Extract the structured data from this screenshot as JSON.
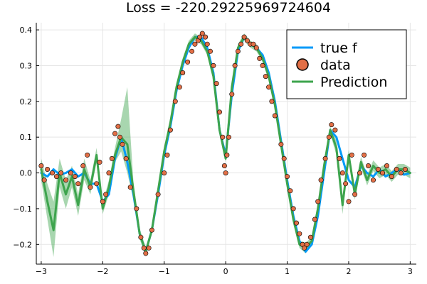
{
  "chart_data": {
    "type": "line",
    "title": "Loss = -220.29225969724604",
    "xlabel": "",
    "ylabel": "",
    "xlim": [
      -3.08,
      3.1
    ],
    "ylim": [
      -0.255,
      0.42
    ],
    "xticks": [
      -3,
      -2,
      -1,
      0,
      1,
      2,
      3
    ],
    "yticks": [
      -0.2,
      -0.1,
      0.0,
      0.1,
      0.2,
      0.3,
      0.4
    ],
    "xtick_labels": [
      "−3",
      "−2",
      "−1",
      "0",
      "1",
      "2",
      "3"
    ],
    "ytick_labels": [
      "−0.2",
      "−0.1",
      "0.0",
      "0.1",
      "0.2",
      "0.3",
      "0.4"
    ],
    "grid": true,
    "legend_position": "top-right",
    "legend": [
      "true f",
      "data",
      "Prediction"
    ],
    "colors": {
      "true_f": "#009AF9",
      "data_fill": "#E26F46",
      "data_stroke": "#000000",
      "prediction": "#3DA44D",
      "band": "#3DA44D",
      "grid": "#E5E5E5",
      "axis": "#000000"
    },
    "series": [
      {
        "name": "true f",
        "kind": "line",
        "x": [
          -3.0,
          -2.9,
          -2.8,
          -2.7,
          -2.6,
          -2.5,
          -2.4,
          -2.3,
          -2.2,
          -2.1,
          -2.0,
          -1.9,
          -1.8,
          -1.7,
          -1.6,
          -1.5,
          -1.4,
          -1.3,
          -1.2,
          -1.1,
          -1.0,
          -0.9,
          -0.8,
          -0.7,
          -0.6,
          -0.5,
          -0.4,
          -0.3,
          -0.2,
          -0.1,
          0.0,
          0.1,
          0.2,
          0.3,
          0.4,
          0.5,
          0.6,
          0.7,
          0.8,
          0.9,
          1.0,
          1.1,
          1.2,
          1.3,
          1.4,
          1.5,
          1.6,
          1.7,
          1.8,
          1.9,
          2.0,
          2.1,
          2.2,
          2.3,
          2.4,
          2.5,
          2.6,
          2.7,
          2.8,
          2.9,
          3.0
        ],
        "y": [
          0.0,
          -0.01,
          0.01,
          -0.005,
          0.0,
          0.01,
          -0.01,
          0.0,
          -0.03,
          -0.03,
          -0.08,
          -0.06,
          0.04,
          0.1,
          0.03,
          -0.06,
          -0.17,
          -0.22,
          -0.16,
          -0.06,
          0.05,
          0.13,
          0.23,
          0.3,
          0.35,
          0.38,
          0.38,
          0.35,
          0.28,
          0.12,
          0.05,
          0.22,
          0.34,
          0.38,
          0.36,
          0.35,
          0.33,
          0.28,
          0.2,
          0.09,
          -0.02,
          -0.12,
          -0.19,
          -0.22,
          -0.2,
          -0.12,
          0.0,
          0.12,
          0.1,
          0.04,
          -0.02,
          -0.04,
          0.02,
          0.0,
          -0.01,
          0.01,
          -0.01,
          0.0,
          0.01,
          -0.005,
          0.0
        ]
      },
      {
        "name": "Prediction",
        "kind": "line",
        "x": [
          -3.0,
          -2.9,
          -2.8,
          -2.7,
          -2.6,
          -2.5,
          -2.4,
          -2.3,
          -2.2,
          -2.1,
          -2.0,
          -1.9,
          -1.8,
          -1.7,
          -1.6,
          -1.5,
          -1.4,
          -1.3,
          -1.2,
          -1.1,
          -1.0,
          -0.9,
          -0.8,
          -0.7,
          -0.6,
          -0.5,
          -0.4,
          -0.3,
          -0.2,
          -0.1,
          0.0,
          0.1,
          0.2,
          0.3,
          0.4,
          0.5,
          0.6,
          0.7,
          0.8,
          0.9,
          1.0,
          1.1,
          1.2,
          1.3,
          1.4,
          1.5,
          1.6,
          1.7,
          1.8,
          1.9,
          2.0,
          2.1,
          2.2,
          2.3,
          2.4,
          2.5,
          2.6,
          2.7,
          2.8,
          2.9,
          3.0
        ],
        "y": [
          0.01,
          -0.08,
          -0.16,
          0.0,
          -0.06,
          -0.01,
          -0.09,
          0.01,
          -0.04,
          0.05,
          -0.1,
          -0.04,
          0.05,
          0.1,
          0.08,
          -0.05,
          -0.17,
          -0.22,
          -0.16,
          -0.05,
          0.06,
          0.14,
          0.24,
          0.31,
          0.36,
          0.38,
          0.37,
          0.34,
          0.27,
          0.12,
          0.04,
          0.24,
          0.35,
          0.38,
          0.36,
          0.35,
          0.32,
          0.27,
          0.19,
          0.08,
          -0.03,
          -0.13,
          -0.2,
          -0.21,
          -0.19,
          -0.1,
          0.02,
          0.12,
          0.07,
          -0.09,
          0.05,
          -0.06,
          0.03,
          -0.02,
          0.02,
          0.0,
          0.01,
          -0.01,
          0.01,
          0.01,
          0.0
        ]
      },
      {
        "name": "",
        "kind": "band",
        "x": [
          -3.0,
          -2.9,
          -2.8,
          -2.7,
          -2.6,
          -2.5,
          -2.4,
          -2.3,
          -2.2,
          -2.1,
          -2.0,
          -1.9,
          -1.8,
          -1.7,
          -1.6,
          -1.5,
          -1.4,
          -1.3,
          -1.2,
          -1.1,
          -1.0,
          -0.9,
          -0.8,
          -0.7,
          -0.6,
          -0.5,
          -0.4,
          -0.3,
          -0.2,
          -0.1,
          0.0,
          0.1,
          0.2,
          0.3,
          0.4,
          0.5,
          0.6,
          0.7,
          0.8,
          0.9,
          1.0,
          1.1,
          1.2,
          1.3,
          1.4,
          1.5,
          1.6,
          1.7,
          1.8,
          1.9,
          2.0,
          2.1,
          2.2,
          2.3,
          2.4,
          2.5,
          2.6,
          2.7,
          2.8,
          2.9,
          3.0
        ],
        "lower": [
          -0.02,
          -0.13,
          -0.235,
          -0.04,
          -0.1,
          -0.04,
          -0.12,
          -0.02,
          -0.06,
          0.03,
          -0.115,
          -0.06,
          0.03,
          0.06,
          0.0,
          -0.075,
          -0.185,
          -0.232,
          -0.17,
          -0.06,
          0.05,
          0.13,
          0.23,
          0.3,
          0.35,
          0.37,
          0.36,
          0.33,
          0.26,
          0.11,
          0.03,
          0.23,
          0.34,
          0.37,
          0.35,
          0.34,
          0.31,
          0.26,
          0.18,
          0.07,
          -0.04,
          -0.14,
          -0.21,
          -0.225,
          -0.2,
          -0.115,
          0.01,
          0.11,
          0.05,
          -0.115,
          0.035,
          -0.075,
          0.015,
          -0.035,
          0.005,
          -0.015,
          -0.005,
          -0.025,
          -0.005,
          -0.005,
          -0.015
        ],
        "upper": [
          0.04,
          -0.03,
          -0.08,
          0.04,
          -0.02,
          0.02,
          -0.06,
          0.04,
          -0.02,
          0.07,
          -0.085,
          -0.02,
          0.07,
          0.15,
          0.24,
          -0.025,
          -0.155,
          -0.208,
          -0.15,
          -0.04,
          0.07,
          0.15,
          0.25,
          0.32,
          0.37,
          0.39,
          0.38,
          0.35,
          0.28,
          0.13,
          0.05,
          0.25,
          0.36,
          0.39,
          0.37,
          0.36,
          0.33,
          0.28,
          0.2,
          0.09,
          -0.02,
          -0.12,
          -0.19,
          -0.195,
          -0.18,
          -0.085,
          0.03,
          0.13,
          0.09,
          -0.065,
          0.065,
          -0.045,
          0.045,
          -0.005,
          0.035,
          0.015,
          0.025,
          0.005,
          0.025,
          0.025,
          0.015
        ]
      },
      {
        "name": "data",
        "kind": "scatter",
        "x": [
          -3.0,
          -2.95,
          -2.9,
          -2.82,
          -2.75,
          -2.68,
          -2.6,
          -2.52,
          -2.45,
          -2.4,
          -2.32,
          -2.25,
          -2.2,
          -2.1,
          -2.05,
          -2.0,
          -1.95,
          -1.9,
          -1.85,
          -1.8,
          -1.75,
          -1.72,
          -1.68,
          -1.62,
          -1.55,
          -1.45,
          -1.38,
          -1.33,
          -1.3,
          -1.25,
          -1.2,
          -1.1,
          -1.0,
          -0.95,
          -0.9,
          -0.82,
          -0.75,
          -0.7,
          -0.62,
          -0.55,
          -0.5,
          -0.45,
          -0.42,
          -0.38,
          -0.33,
          -0.3,
          -0.25,
          -0.2,
          -0.15,
          -0.1,
          -0.05,
          -0.02,
          0.0,
          0.02,
          0.05,
          0.1,
          0.15,
          0.2,
          0.25,
          0.3,
          0.35,
          0.4,
          0.45,
          0.5,
          0.55,
          0.6,
          0.65,
          0.7,
          0.75,
          0.8,
          0.9,
          0.95,
          1.0,
          1.05,
          1.1,
          1.15,
          1.2,
          1.25,
          1.28,
          1.32,
          1.38,
          1.45,
          1.5,
          1.55,
          1.62,
          1.68,
          1.72,
          1.78,
          1.85,
          1.9,
          1.95,
          2.0,
          2.05,
          2.1,
          2.18,
          2.25,
          2.32,
          2.4,
          2.48,
          2.55,
          2.62,
          2.7,
          2.78,
          2.85,
          2.92
        ],
        "y": [
          0.02,
          -0.02,
          0.01,
          0.0,
          -0.01,
          0.0,
          -0.02,
          0.0,
          -0.01,
          -0.03,
          0.02,
          0.05,
          -0.04,
          -0.03,
          0.03,
          -0.08,
          -0.06,
          0.0,
          0.04,
          0.11,
          0.13,
          0.1,
          0.08,
          0.04,
          -0.04,
          -0.1,
          -0.18,
          -0.21,
          -0.225,
          -0.21,
          -0.16,
          -0.06,
          0.0,
          0.05,
          0.12,
          0.2,
          0.24,
          0.28,
          0.31,
          0.34,
          0.36,
          0.37,
          0.38,
          0.39,
          0.38,
          0.36,
          0.34,
          0.3,
          0.25,
          0.17,
          0.1,
          0.02,
          0.0,
          0.05,
          0.1,
          0.22,
          0.3,
          0.34,
          0.36,
          0.38,
          0.37,
          0.36,
          0.36,
          0.35,
          0.32,
          0.3,
          0.27,
          0.24,
          0.2,
          0.16,
          0.08,
          0.04,
          -0.01,
          -0.05,
          -0.1,
          -0.14,
          -0.17,
          -0.2,
          -0.21,
          -0.2,
          -0.18,
          -0.13,
          -0.08,
          -0.02,
          0.04,
          0.1,
          0.135,
          0.12,
          0.04,
          0.0,
          -0.03,
          -0.08,
          0.05,
          -0.06,
          0.0,
          0.05,
          0.02,
          -0.02,
          0.01,
          0.0,
          0.02,
          -0.01,
          0.01,
          0.0,
          0.01
        ]
      }
    ]
  }
}
